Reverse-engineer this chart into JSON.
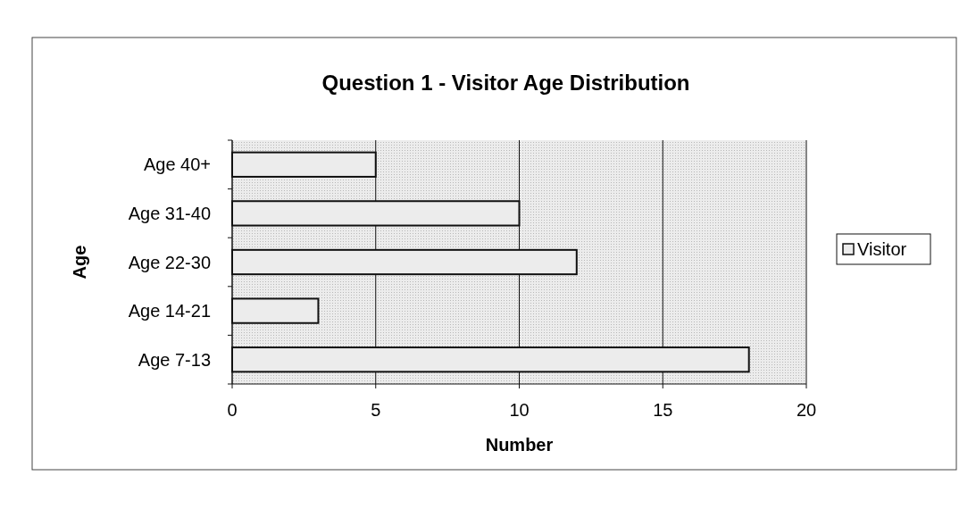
{
  "chart_data": {
    "type": "bar",
    "orientation": "horizontal",
    "title": "Question 1 - Visitor Age Distribution",
    "xlabel": "Number",
    "ylabel": "Age",
    "categories": [
      "Age 40+",
      "Age 31-40",
      "Age 22-30",
      "Age 14-21",
      "Age 7-13"
    ],
    "series": [
      {
        "name": "Visitor",
        "color": "#ececec",
        "values": [
          5,
          10,
          12,
          3,
          18
        ]
      }
    ],
    "xlim": [
      0,
      20
    ],
    "xticks": [
      0,
      5,
      10,
      15,
      20
    ],
    "grid": "x",
    "legend": "right"
  }
}
